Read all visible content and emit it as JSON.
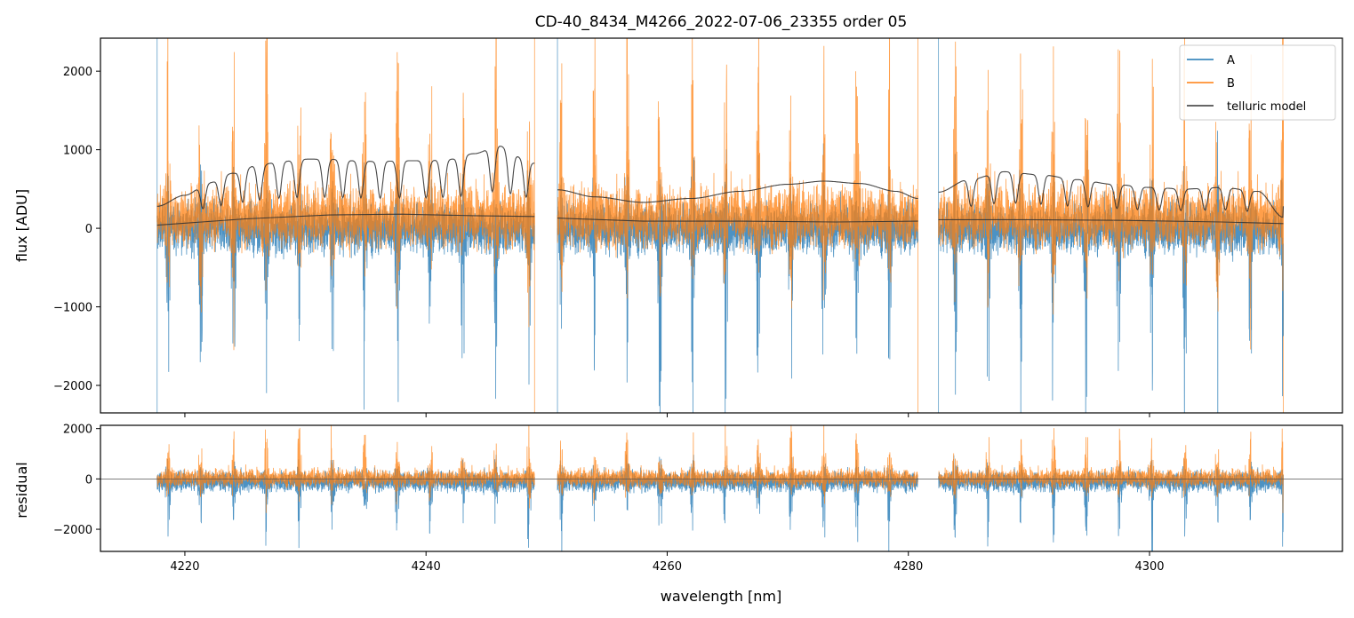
{
  "chart_data": [
    {
      "type": "line",
      "panel": "flux",
      "title": "CD-40_8434_M4266_2022-07-06_23355  order 05",
      "xlabel": "",
      "ylabel": "flux [ADU]",
      "xlim": [
        4213,
        4316
      ],
      "ylim": [
        -2350,
        2420
      ],
      "yticks": [
        -2000,
        -1000,
        0,
        1000,
        2000
      ],
      "ytick_labels": [
        "−2000",
        "−1000",
        "0",
        "1000",
        "2000"
      ],
      "xticks": [
        4220,
        4240,
        4260,
        4280,
        4300
      ],
      "xtick_labels_visible": false,
      "legend": {
        "position": "top-right",
        "entries": [
          {
            "label": "A",
            "color": "#1f77b4"
          },
          {
            "label": "B",
            "color": "#ff7f0e"
          },
          {
            "label": "telluric model",
            "color": "#333333"
          }
        ]
      },
      "segments": [
        [
          4217.7,
          4249.0
        ],
        [
          4250.9,
          4280.8
        ],
        [
          4282.5,
          4311.1
        ]
      ],
      "series": [
        {
          "name": "A",
          "color": "#1f77b4",
          "baseline": 0,
          "noise": 260,
          "line_depth": -2300,
          "spike_height": 700
        },
        {
          "name": "B",
          "color": "#ff7f0e",
          "baseline": 150,
          "noise": 320,
          "line_depth": -600,
          "spike_height": 2400
        },
        {
          "name": "telluric model (upper)",
          "color": "#333333",
          "x": [
            4217.7,
            4220,
            4222,
            4224,
            4226,
            4228,
            4230,
            4232,
            4234,
            4236,
            4238,
            4240,
            4242,
            4244,
            4246,
            4248,
            4249.0,
            4250.9,
            4254,
            4258,
            4262,
            4266,
            4270,
            4273,
            4276,
            4279,
            4280.8,
            4282.5,
            4285,
            4288,
            4291,
            4294,
            4297,
            4300,
            4303,
            4306,
            4309,
            4311.1
          ],
          "y": [
            280,
            420,
            580,
            700,
            800,
            850,
            880,
            880,
            860,
            850,
            860,
            860,
            880,
            950,
            1050,
            900,
            830,
            490,
            400,
            330,
            380,
            470,
            560,
            600,
            570,
            470,
            380,
            460,
            620,
            720,
            680,
            620,
            560,
            520,
            500,
            520,
            470,
            140
          ],
          "absorption_lines": [
            4221.5,
            4223.0,
            4224.8,
            4226.2,
            4227.8,
            4229.3,
            4231.6,
            4233.1,
            4234.6,
            4236.2,
            4237.8,
            4240.0,
            4241.4,
            4242.9,
            4245.5,
            4247.0,
            4248.3,
            4285.2,
            4287.1,
            4288.9,
            4291.0,
            4293.2,
            4294.9,
            4297.3,
            4299.0,
            4300.8,
            4302.6,
            4304.6,
            4306.3,
            4308.1
          ]
        },
        {
          "name": "telluric model (lower)",
          "color": "#333333",
          "x": [
            4217.7,
            4225,
            4232,
            4238,
            4244,
            4249.0,
            4250.9,
            4258,
            4266,
            4274,
            4280.8,
            4282.5,
            4290,
            4298,
            4306,
            4311.1
          ],
          "y": [
            40,
            120,
            170,
            180,
            160,
            150,
            130,
            90,
            90,
            80,
            90,
            110,
            110,
            100,
            80,
            60
          ]
        }
      ]
    },
    {
      "type": "line",
      "panel": "residual",
      "title": "",
      "xlabel": "wavelength [nm]",
      "ylabel": "residual",
      "xlim": [
        4213,
        4316
      ],
      "ylim": [
        -2880,
        2130
      ],
      "yticks": [
        -2000,
        0,
        2000
      ],
      "ytick_labels": [
        "−2000",
        "0",
        "2000"
      ],
      "xticks": [
        4220,
        4240,
        4260,
        4280,
        4300
      ],
      "xtick_labels": [
        "4220",
        "4240",
        "4260",
        "4280",
        "4300"
      ],
      "reference_line": 0,
      "segments": [
        [
          4217.7,
          4249.0
        ],
        [
          4250.9,
          4280.8
        ],
        [
          4282.5,
          4311.1
        ]
      ],
      "series": [
        {
          "name": "A",
          "color": "#1f77b4",
          "baseline": -100,
          "noise": 330,
          "line_depth": -2600,
          "spike_height": 300
        },
        {
          "name": "B",
          "color": "#ff7f0e",
          "baseline": 50,
          "noise": 290,
          "line_depth": -500,
          "spike_height": 2000
        }
      ]
    }
  ]
}
